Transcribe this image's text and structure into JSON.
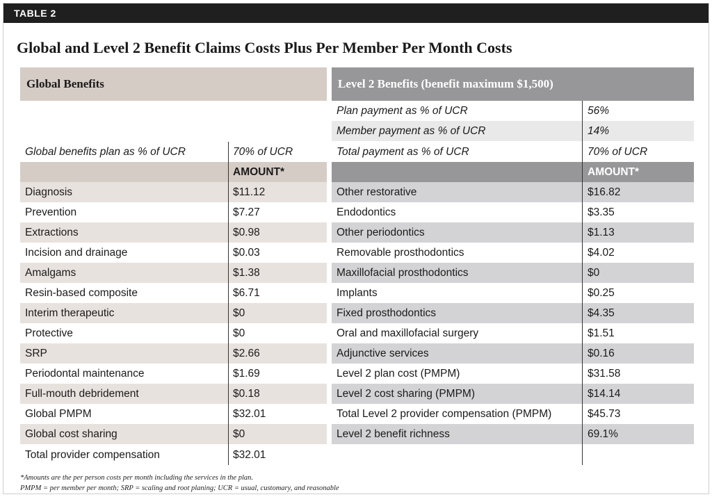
{
  "table_tag": "TABLE 2",
  "title": "Global and Level 2 Benefit Claims Costs Plus Per Member Per Month Costs",
  "left_header": "Global Benefits",
  "right_header": "Level 2 Benefits (benefit maximum $1,500)",
  "left_plan_label": "Global benefits plan as % of UCR",
  "left_plan_value": "70% of UCR",
  "right_plan_rows": [
    {
      "label": "Plan payment as % of UCR",
      "value": "56%"
    },
    {
      "label": "Member payment as % of UCR",
      "value": "14%"
    },
    {
      "label": "Total payment as % of UCR",
      "value": "70% of UCR"
    }
  ],
  "amount_header": "AMOUNT*",
  "left_rows": [
    {
      "label": "Diagnosis",
      "value": "$11.12"
    },
    {
      "label": "Prevention",
      "value": "$7.27"
    },
    {
      "label": "Extractions",
      "value": "$0.98"
    },
    {
      "label": "Incision and drainage",
      "value": "$0.03"
    },
    {
      "label": "Amalgams",
      "value": "$1.38"
    },
    {
      "label": "Resin-based composite",
      "value": "$6.71"
    },
    {
      "label": "Interim therapeutic",
      "value": "$0"
    },
    {
      "label": "Protective",
      "value": "$0"
    },
    {
      "label": "SRP",
      "value": "$2.66"
    },
    {
      "label": "Periodontal maintenance",
      "value": "$1.69"
    },
    {
      "label": "Full-mouth debridement",
      "value": "$0.18"
    },
    {
      "label": "Global PMPM",
      "value": "$32.01"
    },
    {
      "label": "Global cost sharing",
      "value": "$0"
    },
    {
      "label": "Total provider compensation",
      "value": "$32.01"
    }
  ],
  "right_rows": [
    {
      "label": "Other restorative",
      "value": "$16.82"
    },
    {
      "label": "Endodontics",
      "value": "$3.35"
    },
    {
      "label": "Other periodontics",
      "value": "$1.13"
    },
    {
      "label": "Removable prosthodontics",
      "value": "$4.02"
    },
    {
      "label": "Maxillofacial prosthodontics",
      "value": "$0"
    },
    {
      "label": "Implants",
      "value": "$0.25"
    },
    {
      "label": "Fixed prosthodontics",
      "value": "$4.35"
    },
    {
      "label": "Oral and maxillofacial surgery",
      "value": "$1.51"
    },
    {
      "label": "Adjunctive services",
      "value": "$0.16"
    },
    {
      "label": "Level 2 plan cost (PMPM)",
      "value": "$31.58"
    },
    {
      "label": "Level 2 cost sharing (PMPM)",
      "value": "$14.14"
    },
    {
      "label": "Total Level 2 provider compensation (PMPM)",
      "value": "$45.73"
    },
    {
      "label": "Level 2 benefit richness",
      "value": "69.1%"
    }
  ],
  "footnotes": [
    "*Amounts are the per person costs per month including the services in the plan.",
    "PMPM = per member per month; SRP = scaling and root planing; UCR = usual, customary, and reasonable"
  ],
  "colors": {
    "left_band": "#e8e2de",
    "left_header_bg": "#d6ccc6",
    "right_band": "#d3d3d5",
    "right_header_bg": "#979799",
    "tag_bg": "#1f1f1f"
  }
}
